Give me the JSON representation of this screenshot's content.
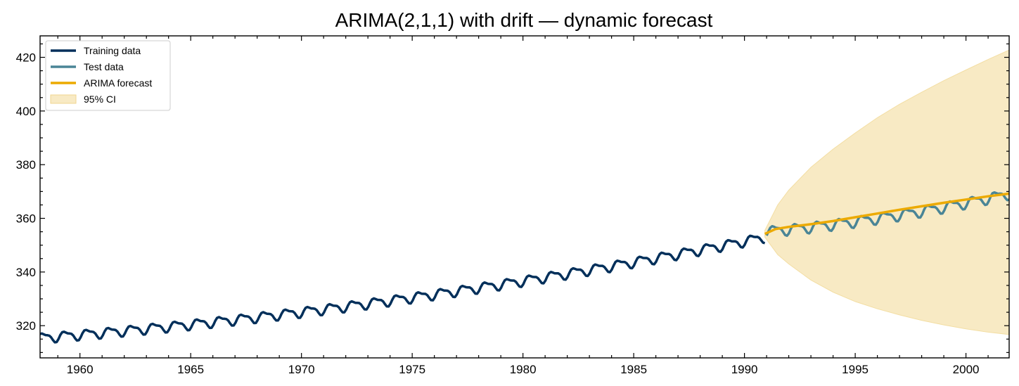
{
  "chart_data": {
    "type": "line",
    "title": "ARIMA(2,1,1) with drift — dynamic forecast",
    "xlabel": "",
    "ylabel": "",
    "xlim": [
      1958.2,
      2001.95
    ],
    "ylim": [
      308,
      428
    ],
    "xticks": [
      1960,
      1965,
      1970,
      1975,
      1980,
      1985,
      1990,
      1995,
      2000
    ],
    "yticks": [
      320,
      340,
      360,
      380,
      400,
      420
    ],
    "grid": false,
    "legend_position": "top-left",
    "legend": [
      "Training data",
      "Test data",
      "ARIMA forecast",
      "95% CI"
    ],
    "series": [
      {
        "name": "Training data",
        "color": "#012f5a",
        "x_range": [
          1958.2,
          1990.92
        ],
        "trend_start": 315.5,
        "trend_end": 353.0,
        "seasonal_amplitude": 3.0,
        "values_at_years": {
          "1960": 316.9,
          "1965": 319.9,
          "1970": 325.7,
          "1975": 331.1,
          "1980": 338.7,
          "1985": 346.1,
          "1990": 354.2
        }
      },
      {
        "name": "Test data",
        "color": "#4a8596",
        "x_range": [
          1991.0,
          2001.95
        ],
        "trend_start": 355.2,
        "trend_end": 369.2,
        "seasonal_amplitude": 3.2,
        "values_at_years": {
          "1991": 355.6,
          "1995": 360.9,
          "2000": 369.3
        }
      },
      {
        "name": "ARIMA forecast",
        "color": "#ecaa00",
        "x": [
          1990.92,
          1991.4,
          1992,
          1993,
          1994,
          1995,
          1996,
          1997,
          1998,
          1999,
          2000,
          2001,
          2001.95
        ],
        "values": [
          354.2,
          356.0,
          356.8,
          357.8,
          359.0,
          360.4,
          361.8,
          363.2,
          364.5,
          365.8,
          367.0,
          368.2,
          369.2
        ]
      },
      {
        "name": "95% CI",
        "color": "#f8eac4",
        "x": [
          1990.92,
          1991.5,
          1992,
          1993,
          1994,
          1995,
          1996,
          1997,
          1998,
          1999,
          2000,
          2001,
          2001.95
        ],
        "upper": [
          355.5,
          365.0,
          370.5,
          379.0,
          385.8,
          391.8,
          397.5,
          402.5,
          407.0,
          411.3,
          415.3,
          419.2,
          422.7
        ],
        "lower": [
          353.0,
          346.5,
          343.0,
          337.0,
          332.5,
          329.0,
          326.3,
          324.0,
          322.0,
          320.3,
          318.8,
          317.6,
          316.7
        ]
      }
    ]
  }
}
